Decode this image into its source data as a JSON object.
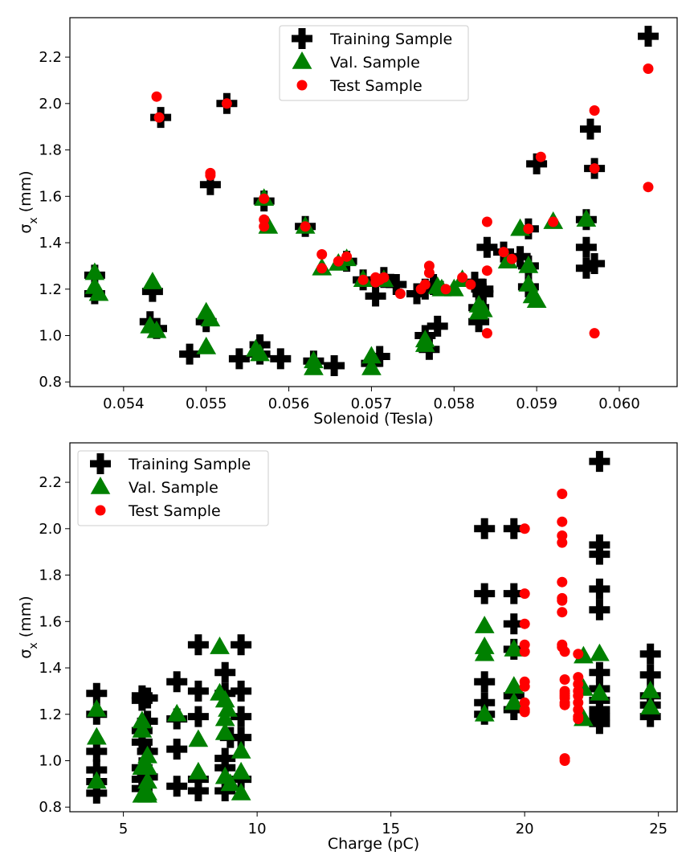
{
  "chart_data": [
    {
      "type": "scatter",
      "title": "",
      "xlabel": "Solenoid (Tesla)",
      "ylabel": "σx (mm)",
      "xlim": [
        0.05335,
        0.0607
      ],
      "ylim": [
        0.78,
        2.37
      ],
      "xticks": [
        0.054,
        0.055,
        0.056,
        0.057,
        0.058,
        0.059,
        0.06
      ],
      "xtick_labels": [
        "0.054",
        "0.055",
        "0.056",
        "0.057",
        "0.058",
        "0.059",
        "0.060"
      ],
      "yticks": [
        0.8,
        1.0,
        1.2,
        1.4,
        1.6,
        1.8,
        2.0,
        2.2
      ],
      "ytick_labels": [
        "0.8",
        "1.0",
        "1.2",
        "1.4",
        "1.6",
        "1.8",
        "2.0",
        "2.2"
      ],
      "legend_position": "top-center",
      "series": [
        {
          "name": "Training Sample",
          "marker": "plus",
          "color": "#000000",
          "x": [
            0.05365,
            0.05365,
            0.05432,
            0.05435,
            0.0544,
            0.05445,
            0.0548,
            0.055,
            0.05505,
            0.05525,
            0.0554,
            0.05565,
            0.05565,
            0.0557,
            0.0559,
            0.0562,
            0.0563,
            0.05655,
            0.0567,
            0.0569,
            0.057,
            0.05705,
            0.0571,
            0.05715,
            0.0573,
            0.05755,
            0.05765,
            0.05765,
            0.0577,
            0.05775,
            0.0578,
            0.05825,
            0.0583,
            0.0583,
            0.05835,
            0.05835,
            0.0584,
            0.0586,
            0.0588,
            0.0589,
            0.0589,
            0.0589,
            0.059,
            0.0596,
            0.0596,
            0.0596,
            0.05965,
            0.0597,
            0.0597,
            0.06035
          ],
          "y": [
            1.26,
            1.18,
            1.06,
            1.19,
            1.03,
            1.94,
            0.92,
            1.06,
            1.65,
            2.0,
            0.9,
            0.96,
            0.92,
            1.58,
            0.9,
            1.47,
            0.89,
            0.87,
            1.32,
            1.24,
            0.88,
            1.17,
            0.91,
            1.25,
            1.22,
            1.18,
            1.0,
            1.2,
            0.94,
            1.22,
            1.04,
            1.23,
            1.12,
            1.06,
            1.18,
            1.2,
            1.38,
            1.36,
            1.34,
            1.21,
            1.3,
            1.46,
            1.74,
            1.38,
            1.29,
            1.5,
            1.89,
            1.72,
            1.31,
            2.29
          ]
        },
        {
          "name": "Val. Sample",
          "marker": "triangle",
          "color": "#008000",
          "x": [
            0.05365,
            0.05365,
            0.0537,
            0.05432,
            0.05435,
            0.0544,
            0.055,
            0.055,
            0.05505,
            0.0556,
            0.05565,
            0.0557,
            0.05575,
            0.0562,
            0.0563,
            0.0563,
            0.0564,
            0.0566,
            0.0567,
            0.0569,
            0.057,
            0.057,
            0.05715,
            0.05765,
            0.05765,
            0.0578,
            0.05785,
            0.058,
            0.0581,
            0.0583,
            0.0583,
            0.05835,
            0.05865,
            0.0588,
            0.0589,
            0.0589,
            0.05895,
            0.059,
            0.0592,
            0.0596
          ],
          "y": [
            1.27,
            1.21,
            1.18,
            1.04,
            1.23,
            1.02,
            0.95,
            1.1,
            1.07,
            0.94,
            0.92,
            1.59,
            1.47,
            1.47,
            0.89,
            0.86,
            1.29,
            1.31,
            1.33,
            1.24,
            0.91,
            0.86,
            1.24,
            0.98,
            0.96,
            1.21,
            1.2,
            1.2,
            1.24,
            1.13,
            1.1,
            1.11,
            1.32,
            1.46,
            1.3,
            1.22,
            1.17,
            1.15,
            1.49,
            1.5
          ]
        },
        {
          "name": "Test Sample",
          "marker": "circle",
          "color": "#ff0000",
          "x": [
            0.0544,
            0.05443,
            0.05525,
            0.05505,
            0.05505,
            0.0557,
            0.0557,
            0.0557,
            0.0562,
            0.0564,
            0.0564,
            0.0566,
            0.0567,
            0.0569,
            0.05705,
            0.05705,
            0.0571,
            0.05715,
            0.05735,
            0.0576,
            0.05765,
            0.0577,
            0.0577,
            0.0579,
            0.0581,
            0.0582,
            0.0584,
            0.0584,
            0.0584,
            0.0586,
            0.0587,
            0.0589,
            0.05905,
            0.0592,
            0.0597,
            0.0597,
            0.0597,
            0.06035,
            0.06035
          ],
          "y": [
            2.03,
            1.94,
            2.0,
            1.7,
            1.69,
            1.59,
            1.5,
            1.47,
            1.47,
            1.35,
            1.29,
            1.32,
            1.34,
            1.24,
            1.25,
            1.23,
            1.24,
            1.25,
            1.18,
            1.2,
            1.22,
            1.3,
            1.27,
            1.2,
            1.25,
            1.22,
            1.49,
            1.28,
            1.01,
            1.36,
            1.33,
            1.46,
            1.77,
            1.49,
            1.97,
            1.72,
            1.01,
            2.15,
            1.64
          ]
        }
      ]
    },
    {
      "type": "scatter",
      "title": "",
      "xlabel": "Charge (pC)",
      "ylabel": "σx (mm)",
      "xlim": [
        3.0,
        25.7
      ],
      "ylim": [
        0.78,
        2.37
      ],
      "xticks": [
        5,
        10,
        15,
        20,
        25
      ],
      "xtick_labels": [
        "5",
        "10",
        "15",
        "20",
        "25"
      ],
      "yticks": [
        0.8,
        1.0,
        1.2,
        1.4,
        1.6,
        1.8,
        2.0,
        2.2
      ],
      "ytick_labels": [
        "0.8",
        "1.0",
        "1.2",
        "1.4",
        "1.6",
        "1.8",
        "2.0",
        "2.2"
      ],
      "legend_position": "top-left",
      "series": [
        {
          "name": "Training Sample",
          "marker": "plus",
          "color": "#000000",
          "x": [
            4.0,
            4.0,
            4.0,
            4.0,
            4.0,
            4.0,
            5.7,
            5.7,
            5.7,
            5.7,
            5.7,
            5.7,
            5.7,
            5.9,
            5.9,
            5.9,
            5.9,
            7.0,
            7.0,
            7.0,
            7.0,
            7.8,
            7.8,
            7.8,
            7.8,
            7.8,
            8.8,
            8.8,
            8.8,
            8.8,
            8.8,
            9.0,
            9.4,
            9.4,
            9.4,
            9.4,
            9.4,
            18.5,
            18.5,
            18.5,
            18.5,
            18.5,
            19.6,
            19.6,
            19.6,
            19.6,
            19.6,
            19.6,
            22.8,
            22.8,
            22.8,
            22.8,
            22.8,
            22.8,
            22.8,
            22.8,
            22.8,
            22.8,
            22.8,
            24.7,
            24.7,
            24.7,
            24.7,
            24.7
          ],
          "y": [
            1.29,
            1.2,
            1.04,
            0.96,
            0.91,
            0.86,
            1.28,
            1.26,
            1.13,
            1.08,
            0.97,
            0.92,
            0.88,
            1.27,
            1.17,
            1.04,
            0.93,
            1.34,
            1.18,
            1.05,
            0.89,
            1.5,
            1.3,
            1.19,
            0.92,
            0.87,
            1.38,
            1.29,
            1.01,
            0.97,
            0.87,
            1.1,
            1.5,
            1.3,
            1.19,
            1.1,
            0.92,
            2.0,
            1.72,
            1.34,
            1.25,
            1.2,
            2.0,
            1.72,
            1.59,
            1.48,
            1.28,
            1.22,
            2.29,
            1.93,
            1.89,
            1.74,
            1.65,
            1.38,
            1.31,
            1.26,
            1.22,
            1.19,
            1.16,
            1.46,
            1.37,
            1.28,
            1.24,
            1.19
          ]
        },
        {
          "name": "Val. Sample",
          "marker": "triangle",
          "color": "#008000",
          "x": [
            4.0,
            4.0,
            4.0,
            5.7,
            5.7,
            5.7,
            5.7,
            5.9,
            5.9,
            5.9,
            5.9,
            5.9,
            7.0,
            7.8,
            7.8,
            8.6,
            8.6,
            8.8,
            8.8,
            8.8,
            8.8,
            8.9,
            9.0,
            9.4,
            9.4,
            9.4,
            18.5,
            18.5,
            18.5,
            18.5,
            19.6,
            19.6,
            19.6,
            22.2,
            22.2,
            22.2,
            22.8,
            22.8,
            24.7,
            24.7
          ],
          "y": [
            1.22,
            1.1,
            0.91,
            1.17,
            1.13,
            0.97,
            0.85,
            1.02,
            0.97,
            0.91,
            0.86,
            0.85,
            1.2,
            1.09,
            0.95,
            1.49,
            1.29,
            1.26,
            1.18,
            1.12,
            0.93,
            1.22,
            0.9,
            1.04,
            0.95,
            0.86,
            1.58,
            1.49,
            1.46,
            1.2,
            1.48,
            1.32,
            1.25,
            1.45,
            1.31,
            1.18,
            1.46,
            1.29,
            1.3,
            1.23
          ]
        },
        {
          "name": "Test Sample",
          "marker": "circle",
          "color": "#ff0000",
          "x": [
            20.0,
            20.0,
            20.0,
            20.0,
            20.0,
            20.0,
            20.0,
            20.0,
            20.0,
            20.0,
            21.4,
            21.4,
            21.4,
            21.4,
            21.4,
            21.4,
            21.4,
            21.4,
            21.4,
            21.4,
            21.5,
            21.5,
            21.5,
            21.5,
            21.5,
            21.5,
            21.5,
            21.5,
            21.5,
            21.5,
            22.0,
            22.0,
            22.0,
            22.0,
            22.0,
            22.0,
            22.0,
            22.0,
            22.0
          ],
          "y": [
            2.0,
            1.72,
            1.59,
            1.5,
            1.47,
            1.34,
            1.32,
            1.25,
            1.22,
            1.21,
            2.15,
            2.03,
            1.97,
            1.94,
            1.77,
            1.7,
            1.69,
            1.64,
            1.5,
            1.49,
            1.47,
            1.35,
            1.3,
            1.29,
            1.28,
            1.27,
            1.25,
            1.24,
            1.01,
            1.0,
            1.46,
            1.36,
            1.33,
            1.3,
            1.28,
            1.25,
            1.22,
            1.19,
            1.18
          ]
        }
      ]
    }
  ]
}
